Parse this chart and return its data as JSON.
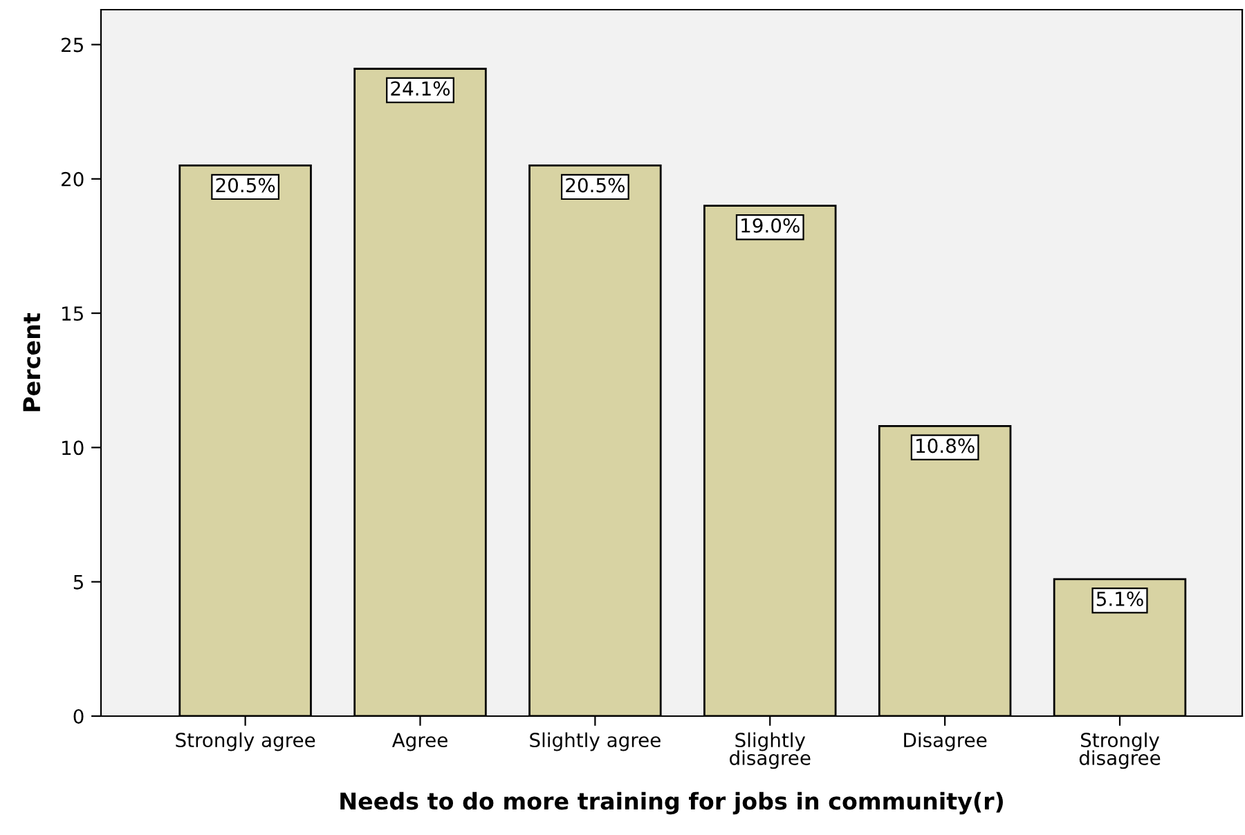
{
  "chart_data": {
    "type": "bar",
    "xlabel": "Needs to do more training for jobs in community(r)",
    "ylabel": "Percent",
    "categories": [
      "Strongly agree",
      "Agree",
      "Slightly agree",
      "Slightly\ndisagree",
      "Disagree",
      "Strongly\ndisagree"
    ],
    "values": [
      20.5,
      24.1,
      20.5,
      19.0,
      10.8,
      5.1
    ],
    "value_labels": [
      "20.5%",
      "24.1%",
      "20.5%",
      "19.0%",
      "10.8%",
      "5.1%"
    ],
    "color": "#d8d3a3",
    "ylim": [
      0,
      26.3
    ],
    "yticks": [
      0,
      5,
      10,
      15,
      20,
      25
    ],
    "grid": false
  }
}
